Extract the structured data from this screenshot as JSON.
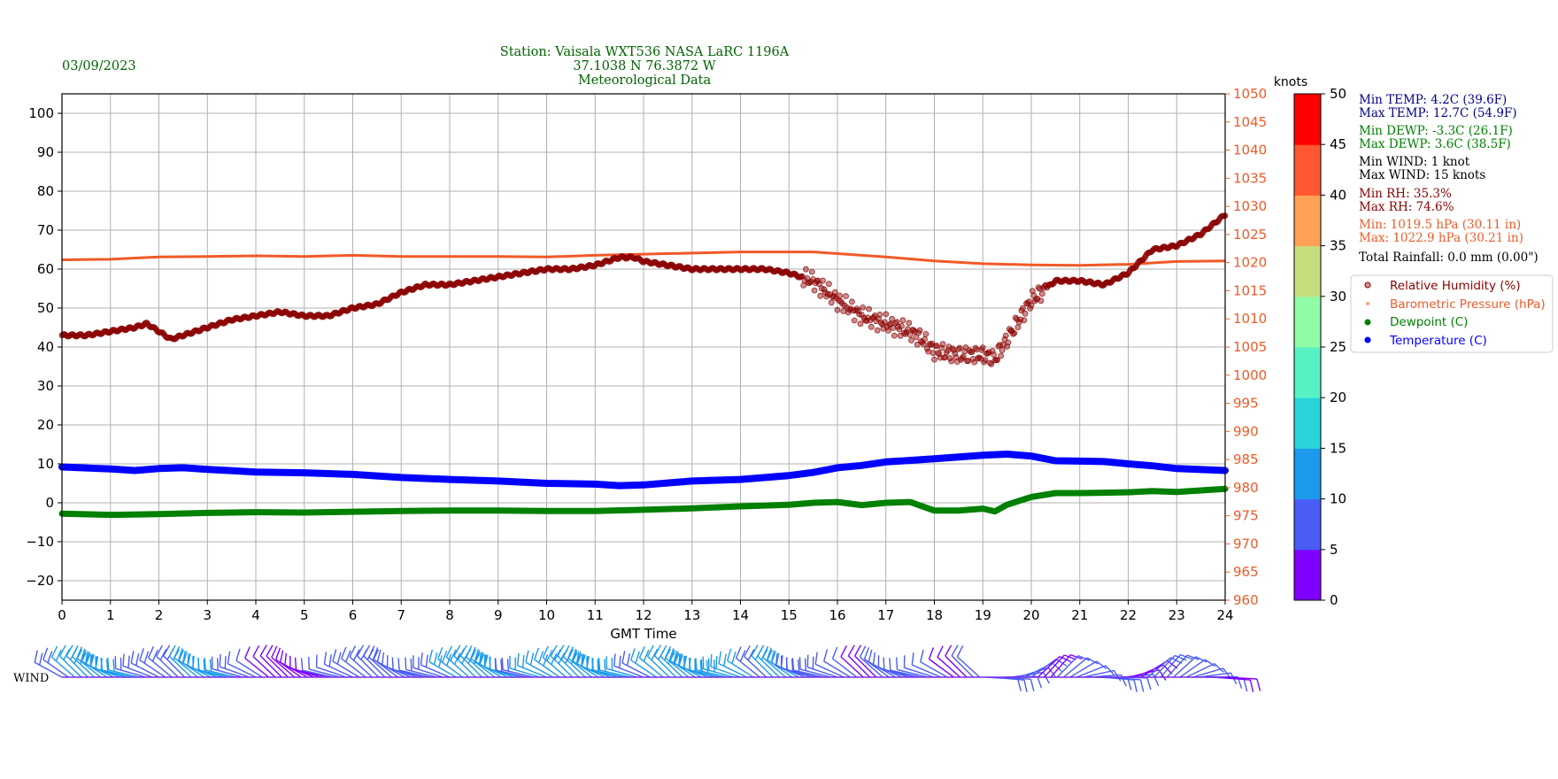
{
  "date": "03/09/2023",
  "header": {
    "line1": "Station:  Vaisala WXT536  NASA LaRC 1196A",
    "line2": "37.1038 N 76.3872 W",
    "line3": "Meteorological Data"
  },
  "stats": {
    "min_temp": "Min TEMP: 4.2C (39.6F)",
    "max_temp": "Max TEMP: 12.7C (54.9F)",
    "min_dewp": "Min DEWP: -3.3C (26.1F)",
    "max_dewp": "Max DEWP: 3.6C (38.5F)",
    "min_wind": "Min WIND: 1 knot",
    "max_wind": "Max WIND: 15 knots",
    "min_rh": "Min RH: 35.3%",
    "max_rh": "Max RH: 74.6%",
    "min_pres": "Min: 1019.5 hPa (30.11 in)",
    "max_pres": "Max: 1022.9 hPa (30.21 in)",
    "rain": "Total Rainfall: 0.0 mm (0.00\")"
  },
  "wind_label": "WIND",
  "colorbar": {
    "label": "knots",
    "ticks": [
      0,
      5,
      10,
      15,
      20,
      25,
      30,
      35,
      40,
      45,
      50
    ],
    "colors": [
      "#8000ff",
      "#4a5cf6",
      "#1c9aeb",
      "#2ad4dd",
      "#56f2c4",
      "#8efda6",
      "#c6de7e",
      "#ffa256",
      "#ff5830",
      "#ff0000"
    ]
  },
  "colors": {
    "rh": "#8b0000",
    "pressure": "#f05a28",
    "dewpoint": "#008000",
    "temperature": "#0000ff",
    "header_text": "#006400",
    "temp_stats": "#00008b"
  },
  "chart_data": {
    "type": "line",
    "xlabel": "GMT Time",
    "x_ticks": [
      0,
      1,
      2,
      3,
      4,
      5,
      6,
      7,
      8,
      9,
      10,
      11,
      12,
      13,
      14,
      15,
      16,
      17,
      18,
      19,
      20,
      21,
      22,
      23,
      24
    ],
    "x_range": [
      0,
      24
    ],
    "left_axis": {
      "range": [
        -25,
        105
      ],
      "ticks": [
        -20,
        -10,
        0,
        10,
        20,
        30,
        40,
        50,
        60,
        70,
        80,
        90,
        100
      ]
    },
    "right_axis": {
      "range": [
        960,
        1050
      ],
      "ticks": [
        960,
        965,
        970,
        975,
        980,
        985,
        990,
        995,
        1000,
        1005,
        1010,
        1015,
        1020,
        1025,
        1030,
        1035,
        1040,
        1045,
        1050
      ]
    },
    "grid": true,
    "legend_position": "right",
    "legend": [
      "Relative Humidity (%)",
      "Barometric Pressure (hPa)",
      "Dewpoint (C)",
      "Temperature (C)"
    ],
    "series": [
      {
        "name": "Relative Humidity (%)",
        "axis": "left",
        "x": [
          0,
          0.5,
          1,
          1.5,
          1.75,
          2,
          2.25,
          2.5,
          3,
          3.5,
          4,
          4.5,
          5,
          5.5,
          6,
          6.5,
          7,
          7.5,
          8,
          8.5,
          9,
          9.5,
          10,
          10.5,
          11,
          11.5,
          11.8,
          12,
          12.5,
          13,
          13.5,
          14,
          14.5,
          15,
          15.5,
          16,
          16.5,
          17,
          17.5,
          17.75,
          18,
          18.5,
          19,
          19.25,
          19.5,
          20,
          20.5,
          21,
          21.5,
          22,
          22.25,
          22.5,
          23,
          23.5,
          24
        ],
        "y": [
          43,
          43,
          44,
          45,
          46,
          44,
          42,
          43,
          45,
          47,
          48,
          49,
          48,
          48,
          50,
          51,
          54,
          56,
          56,
          57,
          58,
          59,
          60,
          60,
          61,
          63,
          63,
          62,
          61,
          60,
          60,
          60,
          60,
          59,
          57,
          52,
          48,
          46,
          44,
          42,
          39,
          38,
          38,
          37,
          42,
          52,
          57,
          57,
          56,
          59,
          62,
          65,
          66,
          69,
          74
        ]
      },
      {
        "name": "Barometric Pressure (hPa)",
        "axis": "right",
        "x": [
          0,
          1,
          2,
          3,
          4,
          5,
          6,
          7,
          8,
          9,
          10,
          11,
          12,
          13,
          14,
          15,
          15.5,
          16,
          17,
          18,
          19,
          20,
          21,
          22,
          23,
          24
        ],
        "y": [
          1020.5,
          1020.6,
          1021.0,
          1021.1,
          1021.2,
          1021.1,
          1021.3,
          1021.1,
          1021.1,
          1021.1,
          1021.0,
          1021.3,
          1021.5,
          1021.7,
          1021.9,
          1021.9,
          1021.9,
          1021.6,
          1021.0,
          1020.3,
          1019.8,
          1019.6,
          1019.5,
          1019.7,
          1020.2,
          1020.3
        ]
      },
      {
        "name": "Dewpoint (C)",
        "axis": "left",
        "x": [
          0,
          1,
          2,
          3,
          4,
          5,
          6,
          7,
          8,
          9,
          10,
          11,
          12,
          13,
          14,
          15,
          15.5,
          16,
          16.5,
          17,
          17.5,
          18,
          18.5,
          19,
          19.25,
          19.5,
          20,
          20.5,
          21,
          21.5,
          22,
          22.5,
          23,
          24
        ],
        "y": [
          -2.8,
          -3.1,
          -2.9,
          -2.6,
          -2.4,
          -2.5,
          -2.3,
          -2.1,
          -2.0,
          -2.0,
          -2.1,
          -2.1,
          -1.8,
          -1.4,
          -0.9,
          -0.5,
          0.0,
          0.2,
          -0.6,
          0.0,
          0.2,
          -2.0,
          -2.0,
          -1.5,
          -2.2,
          -0.5,
          1.5,
          2.5,
          2.5,
          2.6,
          2.7,
          3.0,
          2.8,
          3.6
        ]
      },
      {
        "name": "Temperature (C)",
        "axis": "left",
        "x": [
          0,
          1,
          1.5,
          2,
          2.5,
          3,
          4,
          5,
          6,
          7,
          8,
          9,
          10,
          11,
          11.5,
          12,
          13,
          14,
          15,
          15.5,
          16,
          16.5,
          17,
          18,
          19,
          19.5,
          20,
          20.5,
          21,
          21.5,
          22,
          22.5,
          23,
          24
        ],
        "y": [
          9.2,
          8.7,
          8.3,
          8.8,
          9.0,
          8.6,
          7.9,
          7.7,
          7.3,
          6.5,
          6.0,
          5.6,
          5.0,
          4.8,
          4.4,
          4.6,
          5.6,
          6.0,
          7.0,
          7.8,
          9.0,
          9.6,
          10.5,
          11.3,
          12.2,
          12.5,
          12.0,
          10.8,
          10.7,
          10.6,
          10.0,
          9.5,
          8.8,
          8.3
        ]
      }
    ]
  }
}
